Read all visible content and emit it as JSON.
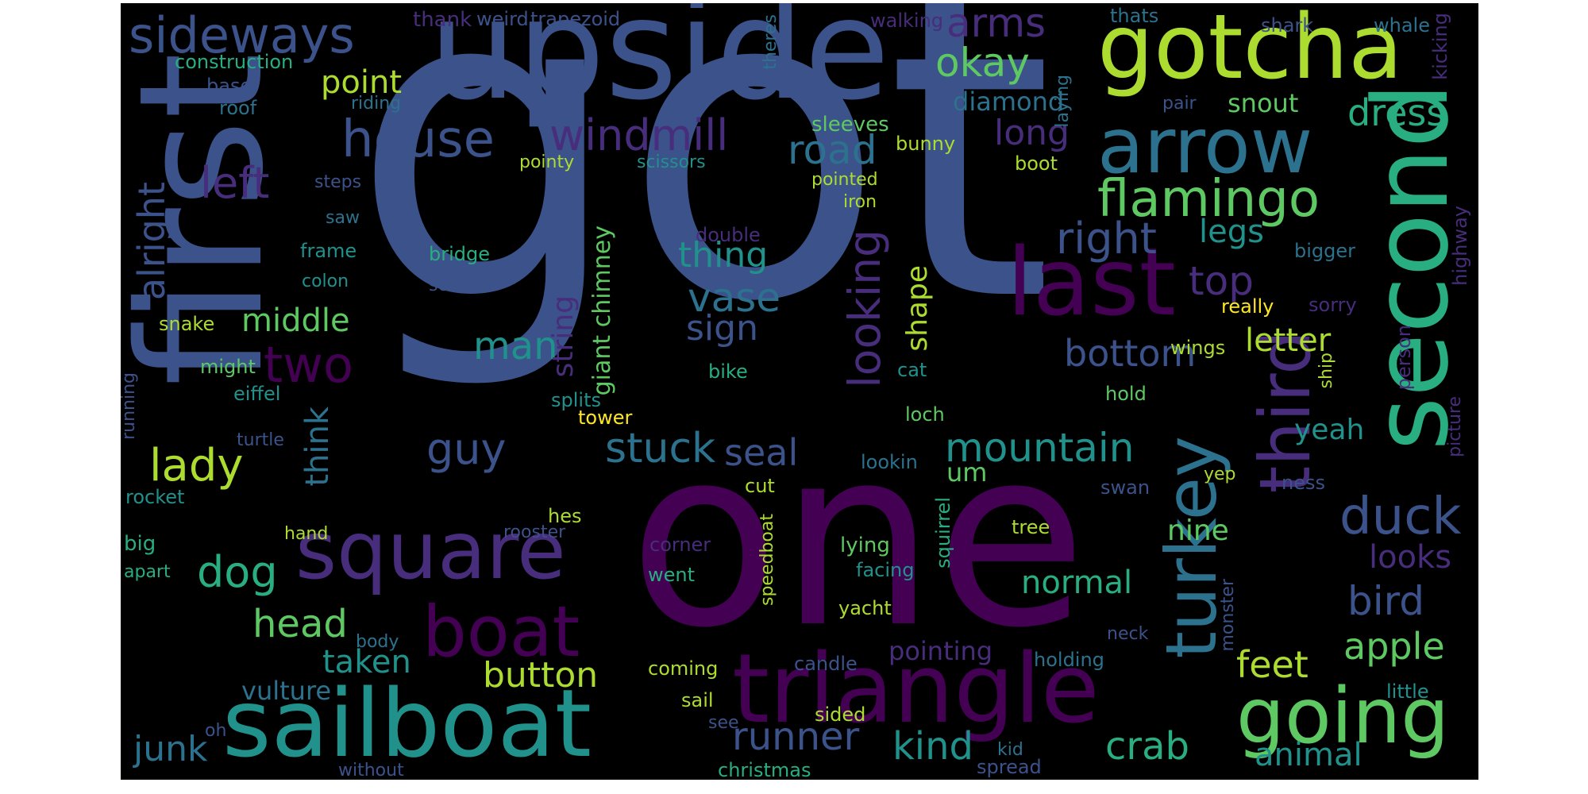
{
  "palette": {
    "background": "#000000",
    "p1": "#440154",
    "p2": "#472d7b",
    "p3": "#3b528b",
    "p4": "#2c728e",
    "p5": "#21918c",
    "p6": "#28ae80",
    "p7": "#5ec962",
    "p8": "#addc30",
    "p9": "#fde725"
  },
  "words": [
    {
      "text": "got",
      "color": "p3"
    },
    {
      "text": "one",
      "color": "p1"
    },
    {
      "text": "first",
      "color": "p3"
    },
    {
      "text": "upside",
      "color": "p3"
    },
    {
      "text": "second",
      "color": "p6"
    },
    {
      "text": "triangle",
      "color": "p1"
    },
    {
      "text": "sailboat",
      "color": "p5"
    },
    {
      "text": "gotcha",
      "color": "p8"
    },
    {
      "text": "square",
      "color": "p2"
    },
    {
      "text": "third",
      "color": "p2"
    },
    {
      "text": "last",
      "color": "p1"
    },
    {
      "text": "arrow",
      "color": "p4"
    },
    {
      "text": "going",
      "color": "p7"
    },
    {
      "text": "turkey",
      "color": "p4"
    },
    {
      "text": "boat",
      "color": "p1"
    },
    {
      "text": "house",
      "color": "p3"
    },
    {
      "text": "sideways",
      "color": "p3"
    },
    {
      "text": "flamingo",
      "color": "p7"
    },
    {
      "text": "windmill",
      "color": "p2"
    },
    {
      "text": "duck",
      "color": "p3"
    },
    {
      "text": "two",
      "color": "p1"
    },
    {
      "text": "looking",
      "color": "p2"
    },
    {
      "text": "stuck",
      "color": "p4"
    },
    {
      "text": "mountain",
      "color": "p5"
    },
    {
      "text": "arms",
      "color": "p2"
    },
    {
      "text": "okay",
      "color": "p7"
    },
    {
      "text": "dress",
      "color": "p6"
    },
    {
      "text": "road",
      "color": "p4"
    },
    {
      "text": "right",
      "color": "p3"
    },
    {
      "text": "top",
      "color": "p2"
    },
    {
      "text": "left",
      "color": "p2"
    },
    {
      "text": "alright",
      "color": "p3"
    },
    {
      "text": "lady",
      "color": "p8"
    },
    {
      "text": "guy",
      "color": "p3"
    },
    {
      "text": "seal",
      "color": "p3"
    },
    {
      "text": "vase",
      "color": "p4"
    },
    {
      "text": "sign",
      "color": "p3"
    },
    {
      "text": "thing",
      "color": "p5"
    },
    {
      "text": "bottom",
      "color": "p3"
    },
    {
      "text": "bird",
      "color": "p3"
    },
    {
      "text": "dog",
      "color": "p6"
    },
    {
      "text": "man",
      "color": "p5"
    },
    {
      "text": "head",
      "color": "p7"
    },
    {
      "text": "apple",
      "color": "p7"
    },
    {
      "text": "feet",
      "color": "p8"
    },
    {
      "text": "crab",
      "color": "p6"
    },
    {
      "text": "kind",
      "color": "p5"
    },
    {
      "text": "runner",
      "color": "p3"
    },
    {
      "text": "button",
      "color": "p8"
    },
    {
      "text": "junk",
      "color": "p4"
    },
    {
      "text": "animal",
      "color": "p5"
    },
    {
      "text": "long",
      "color": "p2"
    },
    {
      "text": "legs",
      "color": "p5"
    },
    {
      "text": "letter",
      "color": "p8"
    },
    {
      "text": "normal",
      "color": "p6"
    },
    {
      "text": "looks",
      "color": "p2"
    },
    {
      "text": "nine",
      "color": "p7"
    },
    {
      "text": "yeah",
      "color": "p5"
    },
    {
      "text": "taken",
      "color": "p5"
    },
    {
      "text": "middle",
      "color": "p7"
    },
    {
      "text": "point",
      "color": "p8"
    },
    {
      "text": "think",
      "color": "p4"
    },
    {
      "text": "shape",
      "color": "p8"
    },
    {
      "text": "string",
      "color": "p2"
    },
    {
      "text": "pointing",
      "color": "p2"
    },
    {
      "text": "vulture",
      "color": "p4"
    },
    {
      "text": "diamond",
      "color": "p4"
    },
    {
      "text": "snout",
      "color": "p7"
    },
    {
      "text": "um",
      "color": "p7"
    },
    {
      "text": "giant chimney",
      "color": "p7"
    },
    {
      "text": "construction",
      "color": "p6"
    },
    {
      "text": "trapezoid",
      "color": "p3"
    },
    {
      "text": "weird",
      "color": "p3"
    },
    {
      "text": "thank",
      "color": "p2"
    },
    {
      "text": "walking",
      "color": "p2"
    },
    {
      "text": "thats",
      "color": "p4"
    },
    {
      "text": "shark",
      "color": "p3"
    },
    {
      "text": "whale",
      "color": "p4"
    },
    {
      "text": "kicking",
      "color": "p2"
    },
    {
      "text": "theres",
      "color": "p4"
    },
    {
      "text": "base",
      "color": "p3"
    },
    {
      "text": "roof",
      "color": "p4"
    },
    {
      "text": "riding",
      "color": "p4"
    },
    {
      "text": "laying",
      "color": "p4"
    },
    {
      "text": "pair",
      "color": "p3"
    },
    {
      "text": "sleeves",
      "color": "p7"
    },
    {
      "text": "bunny",
      "color": "p8"
    },
    {
      "text": "boot",
      "color": "p8"
    },
    {
      "text": "pointy",
      "color": "p8"
    },
    {
      "text": "scissors",
      "color": "p5"
    },
    {
      "text": "pointed",
      "color": "p8"
    },
    {
      "text": "iron",
      "color": "p8"
    },
    {
      "text": "steps",
      "color": "p3"
    },
    {
      "text": "saw",
      "color": "p4"
    },
    {
      "text": "frame",
      "color": "p5"
    },
    {
      "text": "bridge",
      "color": "p6"
    },
    {
      "text": "double",
      "color": "p2"
    },
    {
      "text": "highway",
      "color": "p2"
    },
    {
      "text": "bigger",
      "color": "p4"
    },
    {
      "text": "colon",
      "color": "p5"
    },
    {
      "text": "semi",
      "color": "p3"
    },
    {
      "text": "really",
      "color": "p9"
    },
    {
      "text": "sorry",
      "color": "p2"
    },
    {
      "text": "snake",
      "color": "p8"
    },
    {
      "text": "might",
      "color": "p7"
    },
    {
      "text": "bike",
      "color": "p6"
    },
    {
      "text": "cat",
      "color": "p5"
    },
    {
      "text": "wings",
      "color": "p8"
    },
    {
      "text": "person",
      "color": "p2"
    },
    {
      "text": "ship",
      "color": "p8"
    },
    {
      "text": "eiffel",
      "color": "p5"
    },
    {
      "text": "splits",
      "color": "p5"
    },
    {
      "text": "hold",
      "color": "p7"
    },
    {
      "text": "picture",
      "color": "p2"
    },
    {
      "text": "running",
      "color": "p3"
    },
    {
      "text": "tower",
      "color": "p9"
    },
    {
      "text": "loch",
      "color": "p7"
    },
    {
      "text": "turtle",
      "color": "p3"
    },
    {
      "text": "lookin",
      "color": "p4"
    },
    {
      "text": "rocket",
      "color": "p5"
    },
    {
      "text": "cut",
      "color": "p8"
    },
    {
      "text": "swan",
      "color": "p3"
    },
    {
      "text": "yep",
      "color": "p8"
    },
    {
      "text": "ness",
      "color": "p3"
    },
    {
      "text": "hes",
      "color": "p8"
    },
    {
      "text": "squirrel",
      "color": "p6"
    },
    {
      "text": "hand",
      "color": "p8"
    },
    {
      "text": "rooster",
      "color": "p3"
    },
    {
      "text": "tree",
      "color": "p8"
    },
    {
      "text": "big",
      "color": "p6"
    },
    {
      "text": "corner",
      "color": "p2"
    },
    {
      "text": "lying",
      "color": "p7"
    },
    {
      "text": "speedboat",
      "color": "p8"
    },
    {
      "text": "facing",
      "color": "p5"
    },
    {
      "text": "apart",
      "color": "p6"
    },
    {
      "text": "went",
      "color": "p6"
    },
    {
      "text": "monster",
      "color": "p3"
    },
    {
      "text": "yacht",
      "color": "p8"
    },
    {
      "text": "body",
      "color": "p4"
    },
    {
      "text": "neck",
      "color": "p3"
    },
    {
      "text": "coming",
      "color": "p8"
    },
    {
      "text": "candle",
      "color": "p3"
    },
    {
      "text": "holding",
      "color": "p4"
    },
    {
      "text": "sail",
      "color": "p8"
    },
    {
      "text": "little",
      "color": "p5"
    },
    {
      "text": "oh",
      "color": "p3"
    },
    {
      "text": "see",
      "color": "p3"
    },
    {
      "text": "sided",
      "color": "p8"
    },
    {
      "text": "kid",
      "color": "p4"
    },
    {
      "text": "without",
      "color": "p3"
    },
    {
      "text": "christmas",
      "color": "p6"
    },
    {
      "text": "spread",
      "color": "p3"
    }
  ]
}
